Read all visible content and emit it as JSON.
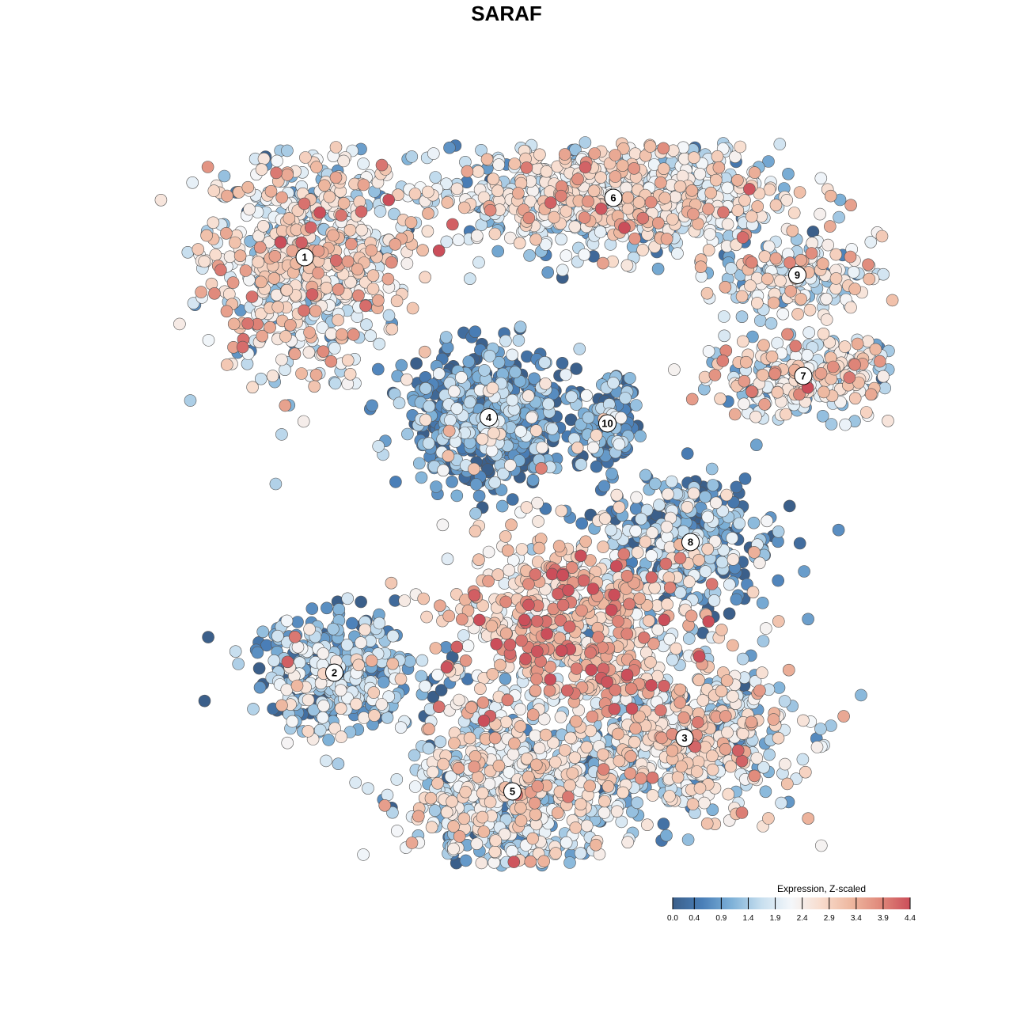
{
  "chart_data": {
    "type": "scatter",
    "title": "SARAF",
    "xlabel": "",
    "ylabel": "",
    "grid": false,
    "legend_position": "bottom-right",
    "colorbar": {
      "title": "Expression, Z-scaled",
      "min": 0.0,
      "max": 4.4,
      "ticks": [
        "0.0",
        "0.4",
        "0.9",
        "1.4",
        "1.9",
        "2.4",
        "2.9",
        "3.4",
        "3.9",
        "4.4"
      ],
      "colors": [
        "#3b5f8a",
        "#4a7fb8",
        "#7fb2d8",
        "#c8dfef",
        "#f4f7fa",
        "#f8dccd",
        "#eeb8a0",
        "#e0897b",
        "#cb4e5a"
      ]
    },
    "clusters": [
      {
        "label": "1",
        "x": -17.0,
        "y": 19.0,
        "spread_x": 8.5,
        "spread_y": 9.5,
        "mean_expression": 2.2,
        "n": 700
      },
      {
        "label": "6",
        "x": 9.0,
        "y": 24.0,
        "spread_x": 14.0,
        "spread_y": 4.5,
        "mean_expression": 2.0,
        "n": 900
      },
      {
        "label": "4",
        "x": -1.5,
        "y": 5.5,
        "spread_x": 6.5,
        "spread_y": 5.5,
        "mean_expression": 0.6,
        "n": 650
      },
      {
        "label": "10",
        "x": 8.5,
        "y": 5.0,
        "spread_x": 2.5,
        "spread_y": 4.0,
        "mean_expression": 0.7,
        "n": 120
      },
      {
        "label": "9",
        "x": 24.5,
        "y": 17.5,
        "spread_x": 7.0,
        "spread_y": 3.0,
        "mean_expression": 2.0,
        "n": 180
      },
      {
        "label": "7",
        "x": 25.0,
        "y": 9.0,
        "spread_x": 9.0,
        "spread_y": 3.5,
        "mean_expression": 2.1,
        "n": 280
      },
      {
        "label": "8",
        "x": 15.5,
        "y": -5.0,
        "spread_x": 7.0,
        "spread_y": 6.0,
        "mean_expression": 1.0,
        "n": 350
      },
      {
        "label": "2",
        "x": -14.5,
        "y": -16.0,
        "spread_x": 7.0,
        "spread_y": 5.0,
        "mean_expression": 1.2,
        "n": 360
      },
      {
        "label": "3",
        "x": 15.0,
        "y": -21.5,
        "spread_x": 9.0,
        "spread_y": 6.0,
        "mean_expression": 2.0,
        "n": 600
      },
      {
        "label": "5",
        "x": 0.5,
        "y": -26.0,
        "spread_x": 9.0,
        "spread_y": 8.0,
        "mean_expression": 1.9,
        "n": 750
      },
      {
        "label": "",
        "x": 5.0,
        "y": -12.0,
        "spread_x": 10.0,
        "spread_y": 8.0,
        "mean_expression": 2.9,
        "n": 550
      }
    ]
  }
}
